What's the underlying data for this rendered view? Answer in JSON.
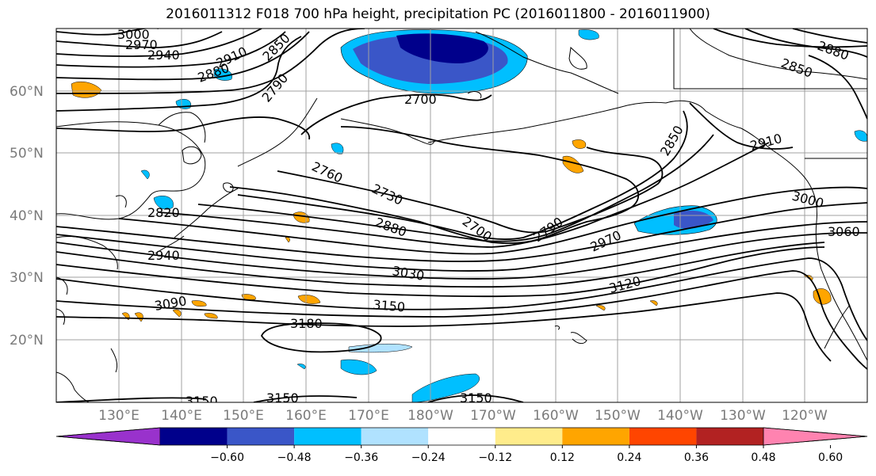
{
  "title": "2016011312 F018 700 hPa height, precipitation PC (2016011800 - 2016011900)",
  "lat_labels": [
    "60°N",
    "50°N",
    "40°N",
    "30°N",
    "20°N"
  ],
  "lon_labels": [
    "130°E",
    "140°E",
    "150°E",
    "160°E",
    "170°E",
    "180°W",
    "170°W",
    "160°W",
    "150°W",
    "140°W",
    "130°W",
    "120°W"
  ],
  "contour_labels": [
    "3000",
    "2970",
    "2940",
    "2910",
    "2880",
    "2850",
    "2790",
    "2700",
    "2760",
    "2730",
    "2700",
    "2880",
    "2820",
    "2940",
    "3030",
    "3090",
    "3150",
    "3180",
    "3150",
    "3150",
    "3150",
    "2790",
    "2970",
    "3120",
    "2850",
    "2910",
    "3000",
    "3060",
    "2880",
    "2850"
  ],
  "colorbar": {
    "colors": [
      "#9932cc",
      "#00008b",
      "#3a56c8",
      "#00bfff",
      "#b0e2ff",
      "#ffffff",
      "#ffec8b",
      "#ffa500",
      "#ff4500",
      "#b22222",
      "#ff83b0"
    ],
    "tick_labels": [
      "−0.60",
      "−0.48",
      "−0.36",
      "−0.24",
      "−0.12",
      "0.12",
      "0.24",
      "0.36",
      "0.48",
      "0.60"
    ]
  },
  "map": {
    "region": "North Pacific",
    "lat_range": [
      "10°N",
      "70°N"
    ],
    "lon_range": [
      "120°E",
      "110°W"
    ],
    "contour_color": "#000000",
    "grid_color": "#a0a0a0"
  }
}
